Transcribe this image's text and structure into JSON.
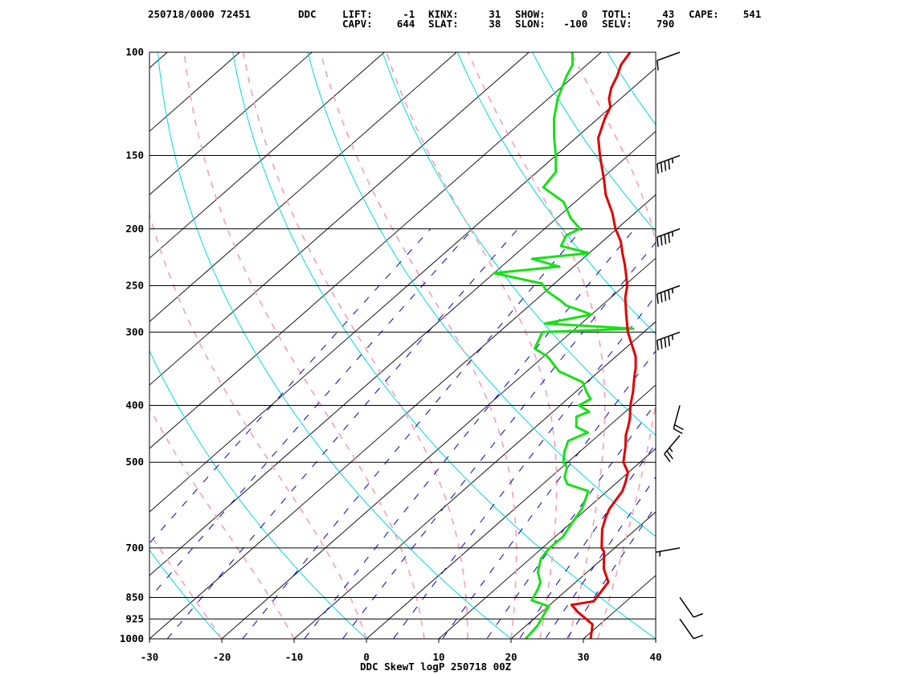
{
  "header": {
    "line1": [
      {
        "key": "id",
        "text": "250718/0000 72451"
      },
      {
        "key": "stn",
        "text": "DDC"
      },
      {
        "key": "lift",
        "text": "LIFT:     -1"
      },
      {
        "key": "kinx",
        "text": "KINX:     31"
      },
      {
        "key": "show",
        "text": "SHOW:      0"
      },
      {
        "key": "totl",
        "text": "TOTL:     43"
      },
      {
        "key": "cape",
        "text": "CAPE:    541"
      }
    ],
    "line2": [
      {
        "key": "capv",
        "text": "CAPV:    644"
      },
      {
        "key": "slat",
        "text": "SLAT:     38"
      },
      {
        "key": "slon",
        "text": "SLON:   -100"
      },
      {
        "key": "selv",
        "text": "SELV:    790"
      }
    ]
  },
  "footer_title": "DDC SkewT logP 250718 00Z",
  "colors": {
    "temperature": "#e00000",
    "dewpoint": "#18e018",
    "isotherm": "#000000",
    "dry_adiabat": "#00d8e0",
    "moist_adiabat": "#f4a0b0",
    "mixing_ratio": "#0000c8",
    "isobar": "#000000",
    "frame": "#000000"
  },
  "chart_data": {
    "type": "skewt-logp",
    "xlabel": "",
    "ylabel": "",
    "x_ticks": [
      "-30",
      "-20",
      "-10",
      "0",
      "10",
      "20",
      "30",
      "40"
    ],
    "x_tick_values": [
      -30,
      -20,
      -10,
      0,
      10,
      20,
      30,
      40
    ],
    "p_ticks": [
      "100",
      "150",
      "200",
      "250",
      "300",
      "400",
      "500",
      "700",
      "850",
      "925",
      "1000"
    ],
    "p_tick_values": [
      100,
      150,
      200,
      250,
      300,
      400,
      500,
      700,
      850,
      925,
      1000
    ],
    "xlim": [
      -30,
      40
    ],
    "plim": [
      1000,
      100
    ],
    "temperature_series": {
      "name": "",
      "points": [
        {
          "p": 1000,
          "t": 31.0
        },
        {
          "p": 945,
          "t": 29.0
        },
        {
          "p": 900,
          "t": 25.0
        },
        {
          "p": 875,
          "t": 23.0
        },
        {
          "p": 863,
          "t": 25.5
        },
        {
          "p": 800,
          "t": 24.5
        },
        {
          "p": 760,
          "t": 21.8
        },
        {
          "p": 710,
          "t": 19.1
        },
        {
          "p": 700,
          "t": 18.2
        },
        {
          "p": 650,
          "t": 15.3
        },
        {
          "p": 620,
          "t": 13.9
        },
        {
          "p": 600,
          "t": 13.1
        },
        {
          "p": 560,
          "t": 12.1
        },
        {
          "p": 540,
          "t": 11.1
        },
        {
          "p": 520,
          "t": 9.9
        },
        {
          "p": 500,
          "t": 7.7
        },
        {
          "p": 470,
          "t": 5.5
        },
        {
          "p": 450,
          "t": 3.8
        },
        {
          "p": 430,
          "t": 2.4
        },
        {
          "p": 420,
          "t": 1.6
        },
        {
          "p": 400,
          "t": -0.3
        },
        {
          "p": 380,
          "t": -2.0
        },
        {
          "p": 360,
          "t": -4.0
        },
        {
          "p": 345,
          "t": -5.5
        },
        {
          "p": 330,
          "t": -7.3
        },
        {
          "p": 300,
          "t": -12.2
        },
        {
          "p": 280,
          "t": -15.2
        },
        {
          "p": 262,
          "t": -18.0
        },
        {
          "p": 250,
          "t": -19.6
        },
        {
          "p": 240,
          "t": -21.4
        },
        {
          "p": 230,
          "t": -23.3
        },
        {
          "p": 220,
          "t": -25.4
        },
        {
          "p": 210,
          "t": -27.5
        },
        {
          "p": 200,
          "t": -30.2
        },
        {
          "p": 188,
          "t": -33.1
        },
        {
          "p": 175,
          "t": -36.9
        },
        {
          "p": 165,
          "t": -39.5
        },
        {
          "p": 150,
          "t": -43.9
        },
        {
          "p": 140,
          "t": -46.9
        },
        {
          "p": 130,
          "t": -49.0
        },
        {
          "p": 124,
          "t": -50.1
        },
        {
          "p": 120,
          "t": -51.6
        },
        {
          "p": 115,
          "t": -53.0
        },
        {
          "p": 110,
          "t": -54.0
        },
        {
          "p": 105,
          "t": -55.3
        },
        {
          "p": 100,
          "t": -56.0
        }
      ]
    },
    "dewpoint_series": {
      "name": "",
      "points": [
        {
          "p": 1000,
          "t": 22.0
        },
        {
          "p": 950,
          "t": 21.6
        },
        {
          "p": 900,
          "t": 20.5
        },
        {
          "p": 880,
          "t": 20.1
        },
        {
          "p": 860,
          "t": 16.8
        },
        {
          "p": 820,
          "t": 15.8
        },
        {
          "p": 800,
          "t": 15.1
        },
        {
          "p": 770,
          "t": 13.2
        },
        {
          "p": 730,
          "t": 11.5
        },
        {
          "p": 700,
          "t": 11.0
        },
        {
          "p": 670,
          "t": 11.1
        },
        {
          "p": 640,
          "t": 10.3
        },
        {
          "p": 600,
          "t": 9.3
        },
        {
          "p": 560,
          "t": 7.4
        },
        {
          "p": 545,
          "t": 3.4
        },
        {
          "p": 530,
          "t": 1.9
        },
        {
          "p": 510,
          "t": 0.7
        },
        {
          "p": 500,
          "t": -0.6
        },
        {
          "p": 480,
          "t": -2.1
        },
        {
          "p": 460,
          "t": -3.3
        },
        {
          "p": 445,
          "t": -1.9
        },
        {
          "p": 435,
          "t": -4.4
        },
        {
          "p": 418,
          "t": -6.0
        },
        {
          "p": 410,
          "t": -5.0
        },
        {
          "p": 400,
          "t": -7.4
        },
        {
          "p": 390,
          "t": -6.8
        },
        {
          "p": 380,
          "t": -8.4
        },
        {
          "p": 365,
          "t": -10.6
        },
        {
          "p": 350,
          "t": -15.5
        },
        {
          "p": 330,
          "t": -19.5
        },
        {
          "p": 320,
          "t": -22.5
        },
        {
          "p": 300,
          "t": -24.0
        },
        {
          "p": 296,
          "t": -12.0
        },
        {
          "p": 290,
          "t": -25.0
        },
        {
          "p": 280,
          "t": -20.0
        },
        {
          "p": 270,
          "t": -25.0
        },
        {
          "p": 265,
          "t": -26.5
        },
        {
          "p": 255,
          "t": -30.0
        },
        {
          "p": 248,
          "t": -31.7
        },
        {
          "p": 238,
          "t": -40.0
        },
        {
          "p": 232,
          "t": -32.0
        },
        {
          "p": 225,
          "t": -37.0
        },
        {
          "p": 220,
          "t": -30.0
        },
        {
          "p": 214,
          "t": -35.0
        },
        {
          "p": 205,
          "t": -36.0
        },
        {
          "p": 200,
          "t": -35.1
        },
        {
          "p": 192,
          "t": -38.0
        },
        {
          "p": 180,
          "t": -41.6
        },
        {
          "p": 170,
          "t": -46.7
        },
        {
          "p": 160,
          "t": -47.4
        },
        {
          "p": 150,
          "t": -50.0
        },
        {
          "p": 140,
          "t": -53.0
        },
        {
          "p": 130,
          "t": -56.0
        },
        {
          "p": 120,
          "t": -58.7
        },
        {
          "p": 110,
          "t": -61.0
        },
        {
          "p": 105,
          "t": -62.0
        },
        {
          "p": 100,
          "t": -64.0
        }
      ]
    },
    "wind_barbs": [
      {
        "p": 100,
        "dir": 250,
        "spd": 10
      },
      {
        "p": 150,
        "dir": 250,
        "spd": 45
      },
      {
        "p": 200,
        "dir": 250,
        "spd": 45
      },
      {
        "p": 250,
        "dir": 250,
        "spd": 45
      },
      {
        "p": 300,
        "dir": 250,
        "spd": 45
      },
      {
        "p": 400,
        "dir": 195,
        "spd": 20
      },
      {
        "p": 450,
        "dir": 220,
        "spd": 25
      },
      {
        "p": 700,
        "dir": 260,
        "spd": 5
      },
      {
        "p": 850,
        "dir": 145,
        "spd": 10
      },
      {
        "p": 925,
        "dir": 145,
        "spd": 10
      }
    ]
  }
}
